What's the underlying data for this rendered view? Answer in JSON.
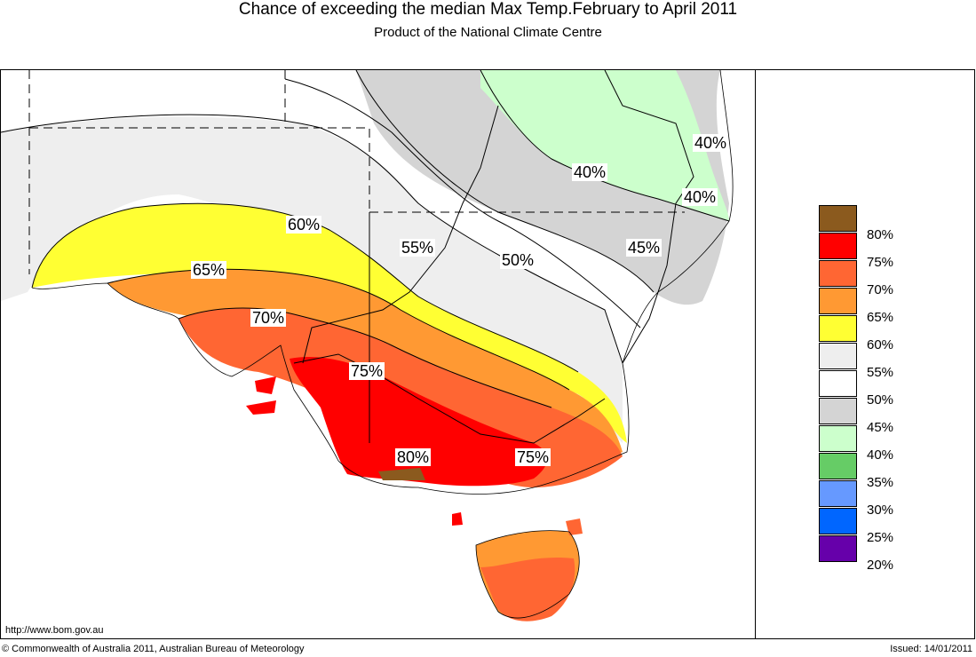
{
  "header": {
    "title": "Chance of exceeding the median Max Temp.February to April 2011",
    "subtitle": "Product of the National Climate Centre"
  },
  "legend": {
    "items": [
      {
        "label": "80%",
        "color": "#8B5A1E"
      },
      {
        "label": "75%",
        "color": "#FF0000"
      },
      {
        "label": "70%",
        "color": "#FF6633"
      },
      {
        "label": "65%",
        "color": "#FF9933"
      },
      {
        "label": "60%",
        "color": "#FFFF33"
      },
      {
        "label": "55%",
        "color": "#EEEEEE"
      },
      {
        "label": "50%",
        "color": "#FFFFFF"
      },
      {
        "label": "45%",
        "color": "#D4D4D4"
      },
      {
        "label": "40%",
        "color": "#CCFFCC"
      },
      {
        "label": "35%",
        "color": "#66CC66"
      },
      {
        "label": "30%",
        "color": "#6699FF"
      },
      {
        "label": "25%",
        "color": "#0066FF"
      },
      {
        "label": "20%",
        "color": "#6600AA"
      }
    ]
  },
  "map": {
    "contour_labels": [
      "40%",
      "40%",
      "40%",
      "60%",
      "55%",
      "50%",
      "45%",
      "65%",
      "70%",
      "75%",
      "80%",
      "75%"
    ]
  },
  "footer": {
    "url": "http://www.bom.gov.au",
    "copyright": "© Commonwealth of Australia 2011, Australian Bureau of Meteorology",
    "issued": "Issued: 14/01/2011"
  }
}
